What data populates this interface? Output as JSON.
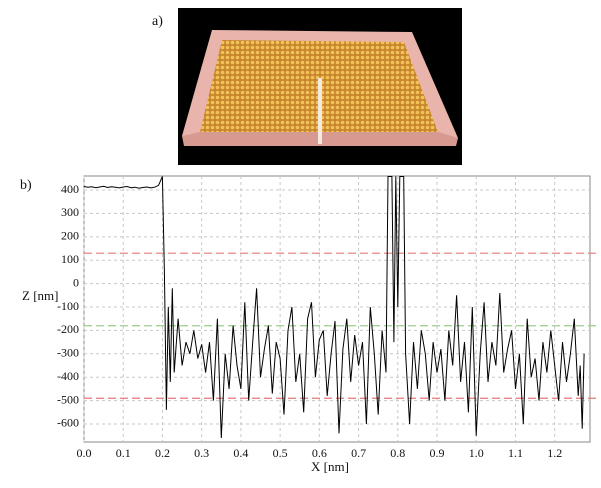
{
  "panel_labels": [
    "a)",
    "b)"
  ],
  "chart_data": {
    "type": "line",
    "x_label": "X [nm]",
    "y_label": "Z [nm]",
    "color": "#000000",
    "x": [
      0.0,
      0.01,
      0.02,
      0.03,
      0.04,
      0.05,
      0.06,
      0.07,
      0.08,
      0.09,
      0.1,
      0.11,
      0.12,
      0.13,
      0.14,
      0.15,
      0.16,
      0.17,
      0.18,
      0.19,
      0.2,
      0.205,
      0.21,
      0.215,
      0.22,
      0.225,
      0.23,
      0.24,
      0.25,
      0.26,
      0.27,
      0.28,
      0.29,
      0.3,
      0.31,
      0.32,
      0.33,
      0.34,
      0.35,
      0.36,
      0.37,
      0.38,
      0.39,
      0.4,
      0.41,
      0.42,
      0.43,
      0.44,
      0.45,
      0.46,
      0.47,
      0.48,
      0.49,
      0.5,
      0.51,
      0.52,
      0.53,
      0.54,
      0.55,
      0.56,
      0.57,
      0.58,
      0.59,
      0.6,
      0.61,
      0.62,
      0.63,
      0.64,
      0.65,
      0.66,
      0.67,
      0.68,
      0.69,
      0.7,
      0.71,
      0.72,
      0.73,
      0.74,
      0.75,
      0.76,
      0.77,
      0.775,
      0.785,
      0.79,
      0.795,
      0.8,
      0.805,
      0.815,
      0.82,
      0.83,
      0.84,
      0.85,
      0.86,
      0.87,
      0.88,
      0.89,
      0.9,
      0.91,
      0.92,
      0.93,
      0.94,
      0.95,
      0.96,
      0.97,
      0.98,
      0.99,
      1.0,
      1.01,
      1.02,
      1.03,
      1.04,
      1.05,
      1.06,
      1.07,
      1.08,
      1.09,
      1.1,
      1.11,
      1.12,
      1.13,
      1.14,
      1.15,
      1.16,
      1.17,
      1.18,
      1.19,
      1.2,
      1.21,
      1.22,
      1.23,
      1.24,
      1.25,
      1.26,
      1.265,
      1.27,
      1.275
    ],
    "values": [
      415,
      412,
      414,
      410,
      413,
      416,
      411,
      414,
      412,
      409,
      413,
      415,
      410,
      412,
      408,
      411,
      413,
      409,
      412,
      420,
      458,
      50,
      -540,
      -100,
      -420,
      -20,
      -380,
      -150,
      -350,
      -250,
      -300,
      -200,
      -320,
      -260,
      -380,
      -250,
      -500,
      -150,
      -660,
      -300,
      -450,
      -180,
      -350,
      -450,
      -80,
      -500,
      -250,
      -20,
      -400,
      -280,
      -180,
      -470,
      -250,
      -320,
      -560,
      -200,
      -100,
      -420,
      -300,
      -550,
      -150,
      -80,
      -400,
      -240,
      -200,
      -480,
      -300,
      -160,
      -640,
      -280,
      -150,
      -420,
      -220,
      -350,
      -250,
      -600,
      -100,
      -300,
      -560,
      -200,
      -380,
      458,
      458,
      -250,
      458,
      -100,
      458,
      458,
      -300,
      -600,
      -250,
      -450,
      -200,
      -300,
      -500,
      -250,
      -380,
      -280,
      -500,
      -200,
      -350,
      -50,
      -420,
      -250,
      -550,
      -100,
      -650,
      -300,
      -80,
      -420,
      -250,
      -350,
      -40,
      -380,
      -280,
      -200,
      -450,
      -300,
      -600,
      -150,
      -400,
      -320,
      -500,
      -250,
      -380,
      -200,
      -350,
      -500,
      -250,
      -420,
      -300,
      -150,
      -480,
      -350,
      -620,
      -300
    ],
    "xlim": [
      0,
      1.29
    ],
    "ylim": [
      -677,
      460
    ],
    "xticks": [
      {
        "value": 0,
        "label": "0.0"
      },
      0.1,
      0.2,
      0.3,
      0.4,
      0.5,
      0.6,
      0.7,
      0.8,
      0.9,
      {
        "value": 1,
        "label": "1.0"
      },
      1.1,
      1.2
    ],
    "yticks": [
      -600,
      -500,
      -400,
      -300,
      -200,
      -100,
      0,
      100,
      200,
      300,
      400
    ],
    "grid": true,
    "reference_lines": [
      {
        "value": 130,
        "color": "#e87878"
      },
      {
        "value": -180,
        "color": "#9ccf8c"
      },
      {
        "value": -490,
        "color": "#e87878"
      }
    ]
  }
}
